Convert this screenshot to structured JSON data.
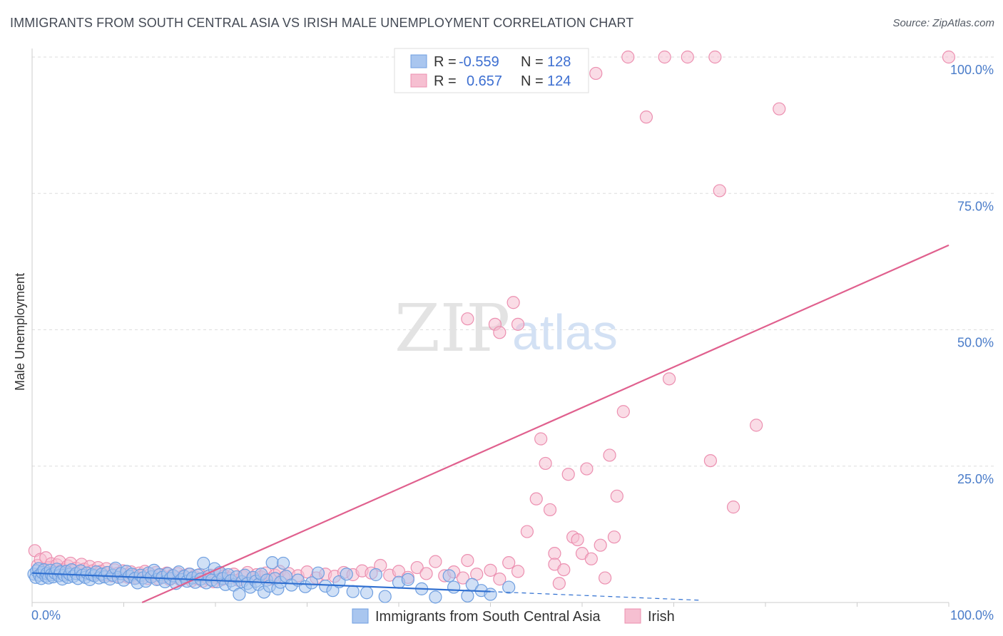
{
  "title": "IMMIGRANTS FROM SOUTH CENTRAL ASIA VS IRISH MALE UNEMPLOYMENT CORRELATION CHART",
  "source": "Source: ZipAtlas.com",
  "watermark": {
    "zip": "ZIP",
    "atlas": "atlas"
  },
  "colors": {
    "blue": "#6f9fe0",
    "blue_fill": "#a9c6ef",
    "blue_line": "#2f6fd0",
    "pink": "#ec8fb0",
    "pink_fill": "#f6bfd1",
    "pink_line": "#e0608e",
    "tick": "#4a7cc9"
  },
  "legend": {
    "rows": [
      {
        "r_label": "R =",
        "r_value": "-0.559",
        "n_label": "N =",
        "n_value": "128"
      },
      {
        "r_label": "R =",
        "r_value": "0.657",
        "n_label": "N =",
        "n_value": "124"
      }
    ]
  },
  "chart_data": {
    "type": "scatter",
    "title": "IMMIGRANTS FROM SOUTH CENTRAL ASIA VS IRISH MALE UNEMPLOYMENT CORRELATION CHART",
    "xlabel": "",
    "ylabel": "Male Unemployment",
    "xlim": [
      0,
      100
    ],
    "ylim": [
      0,
      100
    ],
    "x_tick_labels": [
      "0.0%",
      "100.0%"
    ],
    "y_tick_labels": [
      "25.0%",
      "50.0%",
      "75.0%",
      "100.0%"
    ],
    "y_ticks": [
      25,
      50,
      75,
      100
    ],
    "grid": true,
    "legend_position": "top-center",
    "series": [
      {
        "name": "Immigrants from South Central Asia",
        "r": -0.559,
        "n": 128,
        "trend": {
          "x0": 0,
          "y0": 5.4,
          "x1": 50,
          "y1": 2.0,
          "dashed_to_x": 73,
          "dashed_to_y": 0.4
        },
        "points": [
          [
            0.2,
            5.2
          ],
          [
            0.4,
            4.6
          ],
          [
            0.5,
            5.8
          ],
          [
            0.7,
            6.2
          ],
          [
            0.8,
            5.0
          ],
          [
            1.0,
            4.4
          ],
          [
            1.1,
            5.5
          ],
          [
            1.3,
            6.0
          ],
          [
            1.5,
            4.8
          ],
          [
            1.6,
            5.3
          ],
          [
            1.8,
            4.5
          ],
          [
            2.0,
            5.9
          ],
          [
            2.1,
            5.1
          ],
          [
            2.3,
            4.7
          ],
          [
            2.5,
            5.4
          ],
          [
            2.7,
            6.1
          ],
          [
            2.9,
            4.9
          ],
          [
            3.1,
            5.6
          ],
          [
            3.3,
            4.3
          ],
          [
            3.5,
            5.0
          ],
          [
            3.7,
            5.7
          ],
          [
            3.9,
            4.6
          ],
          [
            4.1,
            5.2
          ],
          [
            4.3,
            6.0
          ],
          [
            4.5,
            4.8
          ],
          [
            4.8,
            5.3
          ],
          [
            5.0,
            4.4
          ],
          [
            5.3,
            5.8
          ],
          [
            5.5,
            5.0
          ],
          [
            5.8,
            4.6
          ],
          [
            6.0,
            5.4
          ],
          [
            6.3,
            4.2
          ],
          [
            6.5,
            5.1
          ],
          [
            6.8,
            4.9
          ],
          [
            7.0,
            5.6
          ],
          [
            7.3,
            4.5
          ],
          [
            7.6,
            5.2
          ],
          [
            7.9,
            4.7
          ],
          [
            8.2,
            5.5
          ],
          [
            8.5,
            4.3
          ],
          [
            8.8,
            5.0
          ],
          [
            9.1,
            6.3
          ],
          [
            9.4,
            4.6
          ],
          [
            9.7,
            5.3
          ],
          [
            10.0,
            4.1
          ],
          [
            10.3,
            5.7
          ],
          [
            10.6,
            4.8
          ],
          [
            10.9,
            5.2
          ],
          [
            11.2,
            4.4
          ],
          [
            11.5,
            3.6
          ],
          [
            11.8,
            5.0
          ],
          [
            12.1,
            4.5
          ],
          [
            12.4,
            3.9
          ],
          [
            12.7,
            5.4
          ],
          [
            13.0,
            4.7
          ],
          [
            13.3,
            5.9
          ],
          [
            13.6,
            4.2
          ],
          [
            13.9,
            5.1
          ],
          [
            14.2,
            4.6
          ],
          [
            14.5,
            3.8
          ],
          [
            14.8,
            5.3
          ],
          [
            15.1,
            4.4
          ],
          [
            15.4,
            4.9
          ],
          [
            15.7,
            3.5
          ],
          [
            16.0,
            5.6
          ],
          [
            16.3,
            4.2
          ],
          [
            16.6,
            4.8
          ],
          [
            16.9,
            3.9
          ],
          [
            17.2,
            5.2
          ],
          [
            17.5,
            4.5
          ],
          [
            17.8,
            3.7
          ],
          [
            18.1,
            5.0
          ],
          [
            18.4,
            4.3
          ],
          [
            18.7,
            7.2
          ],
          [
            19.0,
            3.6
          ],
          [
            19.3,
            4.9
          ],
          [
            19.6,
            4.1
          ],
          [
            19.9,
            6.2
          ],
          [
            20.2,
            3.8
          ],
          [
            20.5,
            5.5
          ],
          [
            20.8,
            4.4
          ],
          [
            21.1,
            3.3
          ],
          [
            21.4,
            5.1
          ],
          [
            21.7,
            4.0
          ],
          [
            22.0,
            3.2
          ],
          [
            22.3,
            4.7
          ],
          [
            22.6,
            1.5
          ],
          [
            22.9,
            3.8
          ],
          [
            23.2,
            5.0
          ],
          [
            23.5,
            3.5
          ],
          [
            23.8,
            2.8
          ],
          [
            24.1,
            4.6
          ],
          [
            24.4,
            3.9
          ],
          [
            24.7,
            3.3
          ],
          [
            25.0,
            5.2
          ],
          [
            25.3,
            1.9
          ],
          [
            25.6,
            4.1
          ],
          [
            25.9,
            3.0
          ],
          [
            26.2,
            7.3
          ],
          [
            26.5,
            4.4
          ],
          [
            26.8,
            2.5
          ],
          [
            27.1,
            3.7
          ],
          [
            27.4,
            7.2
          ],
          [
            27.7,
            4.8
          ],
          [
            28.3,
            3.2
          ],
          [
            29.0,
            4.1
          ],
          [
            29.8,
            2.9
          ],
          [
            30.5,
            3.6
          ],
          [
            31.2,
            5.4
          ],
          [
            32.0,
            3.0
          ],
          [
            32.8,
            2.2
          ],
          [
            33.5,
            3.8
          ],
          [
            34.3,
            5.2
          ],
          [
            35.0,
            2.0
          ],
          [
            36.5,
            1.8
          ],
          [
            37.5,
            5.1
          ],
          [
            38.5,
            1.1
          ],
          [
            40.0,
            3.7
          ],
          [
            41.0,
            4.2
          ],
          [
            42.5,
            2.5
          ],
          [
            44.0,
            1.0
          ],
          [
            45.5,
            4.9
          ],
          [
            46.0,
            2.8
          ],
          [
            47.5,
            1.2
          ],
          [
            48.0,
            3.3
          ],
          [
            49.0,
            2.2
          ],
          [
            50.0,
            1.5
          ],
          [
            52.0,
            2.8
          ]
        ]
      },
      {
        "name": "Irish",
        "r": 0.657,
        "n": 124,
        "trend": {
          "x0": 12,
          "y0": 0.0,
          "x1": 100,
          "y1": 65.5
        },
        "points": [
          [
            0.3,
            9.5
          ],
          [
            0.6,
            6.8
          ],
          [
            0.9,
            7.9
          ],
          [
            1.2,
            5.8
          ],
          [
            1.5,
            8.2
          ],
          [
            1.8,
            6.4
          ],
          [
            2.1,
            7.1
          ],
          [
            2.4,
            5.6
          ],
          [
            2.7,
            6.9
          ],
          [
            3.0,
            7.5
          ],
          [
            3.3,
            6.0
          ],
          [
            3.6,
            5.4
          ],
          [
            3.9,
            6.7
          ],
          [
            4.2,
            7.2
          ],
          [
            4.5,
            5.9
          ],
          [
            4.8,
            6.3
          ],
          [
            5.1,
            5.5
          ],
          [
            5.4,
            7.0
          ],
          [
            5.7,
            6.1
          ],
          [
            6.0,
            5.3
          ],
          [
            6.3,
            6.6
          ],
          [
            6.6,
            5.8
          ],
          [
            6.9,
            5.2
          ],
          [
            7.2,
            6.4
          ],
          [
            7.5,
            5.7
          ],
          [
            7.8,
            5.0
          ],
          [
            8.1,
            6.2
          ],
          [
            8.4,
            5.5
          ],
          [
            8.7,
            4.9
          ],
          [
            9.0,
            6.0
          ],
          [
            9.3,
            5.3
          ],
          [
            9.6,
            4.7
          ],
          [
            9.9,
            5.8
          ],
          [
            10.2,
            5.1
          ],
          [
            10.5,
            4.6
          ],
          [
            10.8,
            5.6
          ],
          [
            11.1,
            5.0
          ],
          [
            11.4,
            4.5
          ],
          [
            11.7,
            5.4
          ],
          [
            12.0,
            4.9
          ],
          [
            12.3,
            5.7
          ],
          [
            12.6,
            4.4
          ],
          [
            12.9,
            5.2
          ],
          [
            13.2,
            4.8
          ],
          [
            13.5,
            5.5
          ],
          [
            13.8,
            4.3
          ],
          [
            14.1,
            5.1
          ],
          [
            14.4,
            4.7
          ],
          [
            14.7,
            5.4
          ],
          [
            15.0,
            4.2
          ],
          [
            15.3,
            5.0
          ],
          [
            15.6,
            4.6
          ],
          [
            15.9,
            5.3
          ],
          [
            16.2,
            4.1
          ],
          [
            16.5,
            4.9
          ],
          [
            16.8,
            4.5
          ],
          [
            17.1,
            5.2
          ],
          [
            17.4,
            4.0
          ],
          [
            17.7,
            4.8
          ],
          [
            18.0,
            4.4
          ],
          [
            18.3,
            5.1
          ],
          [
            18.6,
            3.9
          ],
          [
            18.9,
            4.7
          ],
          [
            19.2,
            4.3
          ],
          [
            19.5,
            5.0
          ],
          [
            19.8,
            3.8
          ],
          [
            20.1,
            4.6
          ],
          [
            20.4,
            5.4
          ],
          [
            20.7,
            4.2
          ],
          [
            21.0,
            4.9
          ],
          [
            21.5,
            4.5
          ],
          [
            22.0,
            5.2
          ],
          [
            22.5,
            4.1
          ],
          [
            23.0,
            4.8
          ],
          [
            23.5,
            5.5
          ],
          [
            24.0,
            4.4
          ],
          [
            24.5,
            5.1
          ],
          [
            25.0,
            4.7
          ],
          [
            25.5,
            5.4
          ],
          [
            26.0,
            4.3
          ],
          [
            26.5,
            5.0
          ],
          [
            27.0,
            5.7
          ],
          [
            27.5,
            4.6
          ],
          [
            28.0,
            5.3
          ],
          [
            29.0,
            4.9
          ],
          [
            30.0,
            5.6
          ],
          [
            31.0,
            4.5
          ],
          [
            32.0,
            5.2
          ],
          [
            33.0,
            4.8
          ],
          [
            34.0,
            5.5
          ],
          [
            35.0,
            5.1
          ],
          [
            36.0,
            5.8
          ],
          [
            37.0,
            5.4
          ],
          [
            38.0,
            6.8
          ],
          [
            39.0,
            5.0
          ],
          [
            40.0,
            5.7
          ],
          [
            41.0,
            4.6
          ],
          [
            42.0,
            6.4
          ],
          [
            43.0,
            5.3
          ],
          [
            44.0,
            7.5
          ],
          [
            45.0,
            4.9
          ],
          [
            46.0,
            5.6
          ],
          [
            47.0,
            4.5
          ],
          [
            47.5,
            7.7
          ],
          [
            48.5,
            5.2
          ],
          [
            50.0,
            5.9
          ],
          [
            51.0,
            4.3
          ],
          [
            52.0,
            7.3
          ],
          [
            53.0,
            5.7
          ],
          [
            54.0,
            13.0
          ],
          [
            55.0,
            19.0
          ],
          [
            56.0,
            25.5
          ],
          [
            57.0,
            9.0
          ],
          [
            57.5,
            3.5
          ],
          [
            58.5,
            23.5
          ],
          [
            60.0,
            9.0
          ],
          [
            61.0,
            8.0
          ],
          [
            62.0,
            10.5
          ],
          [
            63.0,
            27.0
          ],
          [
            64.5,
            35.0
          ]
        ],
        "outliers": [
          [
            47.5,
            52.0
          ],
          [
            50.5,
            51.0
          ],
          [
            51.0,
            49.5
          ],
          [
            52.5,
            55.0
          ],
          [
            53.0,
            51.0
          ],
          [
            55.5,
            30.0
          ],
          [
            56.5,
            17.0
          ],
          [
            57.0,
            7.0
          ],
          [
            58.0,
            6.0
          ],
          [
            59.0,
            12.0
          ],
          [
            59.5,
            11.5
          ],
          [
            60.5,
            24.5
          ],
          [
            61.5,
            97.0
          ],
          [
            62.5,
            4.5
          ],
          [
            63.5,
            12.0
          ],
          [
            63.8,
            19.5
          ],
          [
            65.0,
            100.0
          ],
          [
            67.0,
            89.0
          ],
          [
            69.0,
            100.0
          ],
          [
            69.5,
            41.0
          ],
          [
            71.5,
            100.0
          ],
          [
            74.0,
            26.0
          ],
          [
            74.5,
            100.0
          ],
          [
            75.0,
            75.5
          ],
          [
            76.5,
            17.5
          ],
          [
            79.0,
            32.5
          ],
          [
            81.5,
            90.5
          ],
          [
            100.0,
            100.0
          ]
        ]
      }
    ]
  },
  "bottom_legend": {
    "blue_label": "Immigrants from South Central Asia",
    "pink_label": "Irish"
  }
}
